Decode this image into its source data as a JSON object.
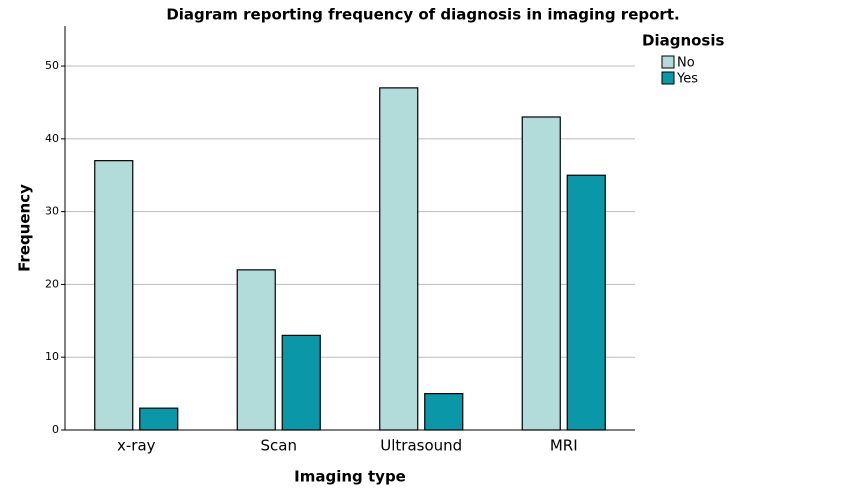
{
  "chart_data": {
    "type": "bar",
    "title": "Diagram reporting frequency of diagnosis in imaging report.",
    "x_label": "Imaging type",
    "y_label": "Frequency",
    "categories": [
      "x-ray",
      "Scan",
      "Ultrasound",
      "MRI"
    ],
    "series": [
      {
        "name": "No",
        "color": "#b2dcd9",
        "values": [
          37,
          22,
          47,
          43
        ]
      },
      {
        "name": "Yes",
        "color": "#0a97a8",
        "values": [
          3,
          13,
          5,
          35
        ]
      }
    ],
    "legend_title": "Diagnosis",
    "legend_position": "right",
    "ylim": [
      0,
      55.5
    ],
    "yticks": [
      0,
      10,
      20,
      30,
      40,
      50
    ],
    "grid": true
  }
}
